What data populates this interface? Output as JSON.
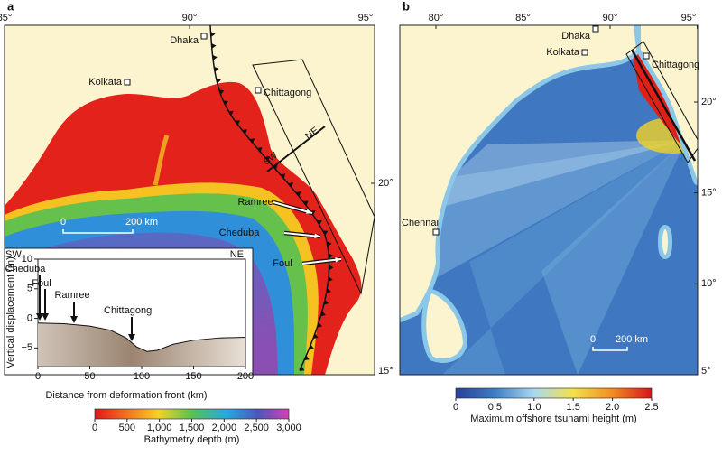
{
  "panels": [
    {
      "label": "a",
      "lonticks": [
        {
          "value": 85,
          "label": "85°"
        },
        {
          "value": 90,
          "label": "90°"
        },
        {
          "value": 95,
          "label": "95°"
        }
      ],
      "latticks": [
        {
          "value": 20,
          "label": "20°"
        },
        {
          "value": 15,
          "label": "15°"
        }
      ],
      "places": [
        "Dhaka",
        "Kolkata",
        "Chittagong"
      ],
      "islands": [
        "Ramree",
        "Cheduba",
        "Foul"
      ],
      "profile_ends": [
        "SW",
        "NE"
      ],
      "scalebar": [
        "0",
        "200 km"
      ],
      "colorbar": {
        "title": "Bathymetry depth (m)",
        "lim": [
          0,
          3000
        ],
        "ticks": [
          0,
          500,
          {
            "value": 1000,
            "label": "1,000"
          },
          {
            "value": 1500,
            "label": "1,500"
          },
          {
            "value": 2000,
            "label": "2,000"
          },
          {
            "value": 2500,
            "label": "2,500"
          },
          {
            "value": 3000,
            "label": "3,000"
          }
        ]
      }
    },
    {
      "label": "b",
      "lonticks": [
        {
          "value": 80,
          "label": "80°"
        },
        {
          "value": 85,
          "label": "85°"
        },
        {
          "value": 90,
          "label": "90°"
        },
        {
          "value": 95,
          "label": "95°"
        }
      ],
      "latticks": [
        {
          "value": 20,
          "label": "20°"
        },
        {
          "value": 15,
          "label": "15°"
        },
        {
          "value": 10,
          "label": "10°"
        },
        {
          "value": 5,
          "label": "5°"
        }
      ],
      "places": [
        "Dhaka",
        "Kolkata",
        "Chittagong",
        "Chennai"
      ],
      "scalebar": [
        "0",
        "200 km"
      ],
      "colorbar": {
        "title": "Maximum offshore tsunami height (m)",
        "lim": [
          0,
          2.5
        ],
        "ticks": [
          0,
          0.5,
          {
            "value": 1,
            "label": "1.0"
          },
          1.5,
          {
            "value": 2,
            "label": "2.0"
          },
          2.5
        ]
      }
    }
  ],
  "inset": {
    "type": "line",
    "xlabel": "Distance from deformation front (km)",
    "ylabel": "Vertical displacement (m)",
    "xlim": [
      0,
      200
    ],
    "ylim": [
      -8,
      10
    ],
    "xticks": [
      0,
      50,
      100,
      150,
      200
    ],
    "yticks": [
      10,
      5,
      0,
      {
        "value": -5,
        "label": "−5"
      }
    ],
    "x": [
      0,
      25,
      50,
      70,
      85,
      95,
      105,
      115,
      130,
      150,
      175,
      200
    ],
    "values": [
      -0.8,
      -0.9,
      -1.3,
      -2.0,
      -3.3,
      -4.8,
      -5.6,
      -5.4,
      -4.4,
      -3.7,
      -3.3,
      -3.2
    ],
    "ends": [
      "SW",
      "NE"
    ],
    "annotations": [
      "Cheduba",
      "Foul",
      "Ramree",
      "Chittagong"
    ]
  }
}
